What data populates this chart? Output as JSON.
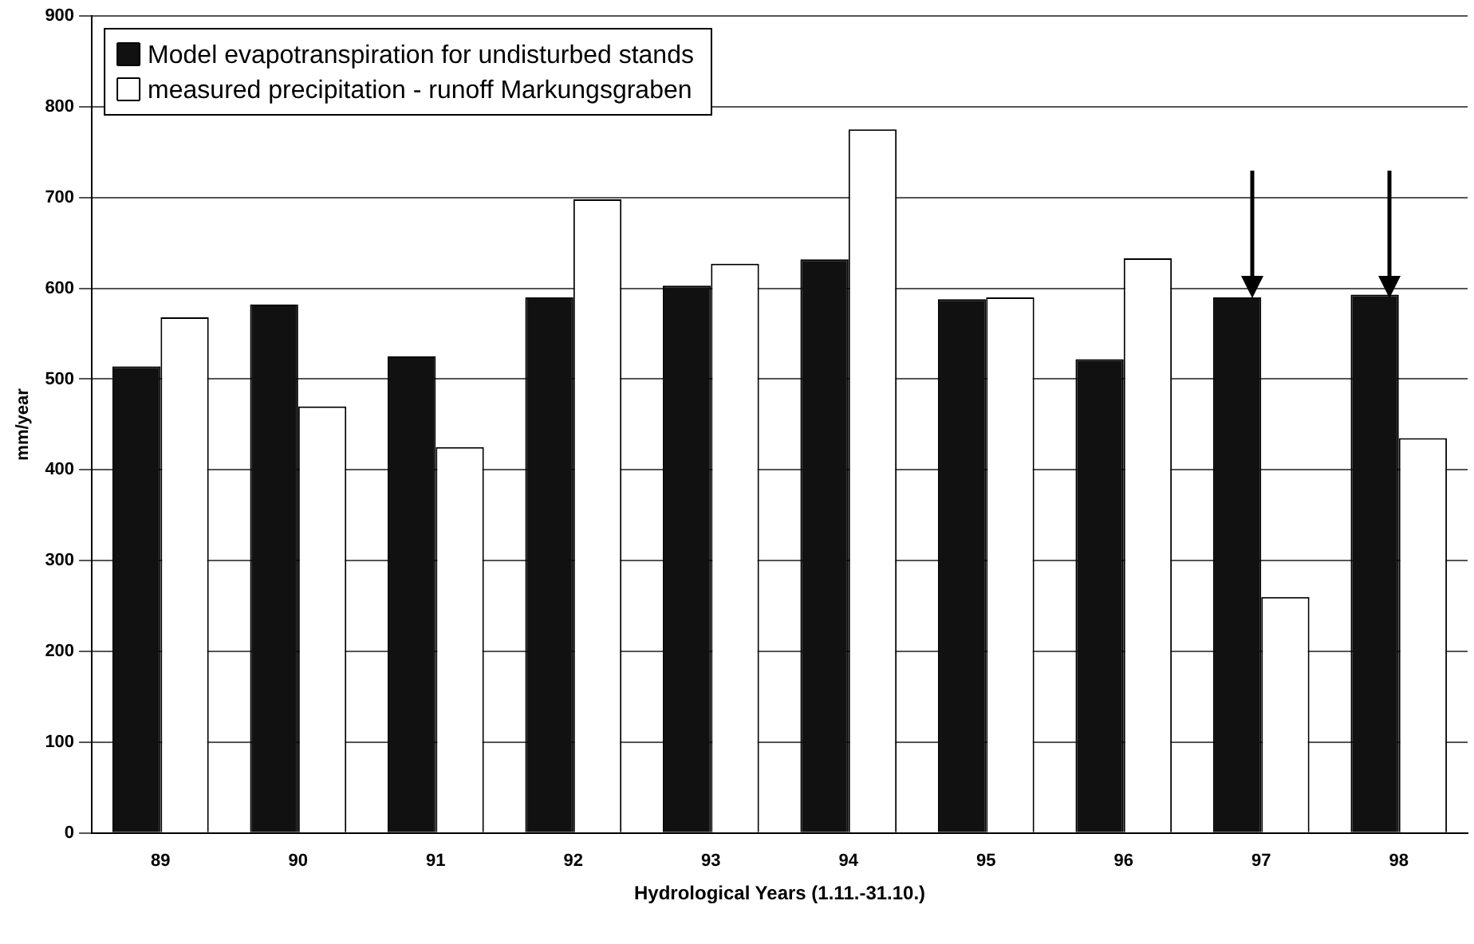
{
  "chart_data": {
    "type": "bar",
    "xlabel": "Hydrological Years (1.11.-31.10.)",
    "ylabel": "mm/year",
    "categories": [
      "89",
      "90",
      "91",
      "92",
      "93",
      "94",
      "95",
      "96",
      "97",
      "98"
    ],
    "series": [
      {
        "name": "Model evapotranspiration for undisturbed stands",
        "color": "#111111",
        "values": [
          514,
          582,
          525,
          590,
          603,
          632,
          588,
          522,
          590,
          593
        ]
      },
      {
        "name": "measured precipitation - runoff Markungsgraben",
        "color": "#ffffff",
        "values": [
          568,
          470,
          425,
          698,
          627,
          775,
          590,
          633,
          260,
          435
        ]
      }
    ],
    "ylim": [
      0,
      900
    ],
    "yticks": [
      0,
      100,
      200,
      300,
      400,
      500,
      600,
      700,
      800,
      900
    ],
    "grid": "y",
    "legend": "top left"
  }
}
